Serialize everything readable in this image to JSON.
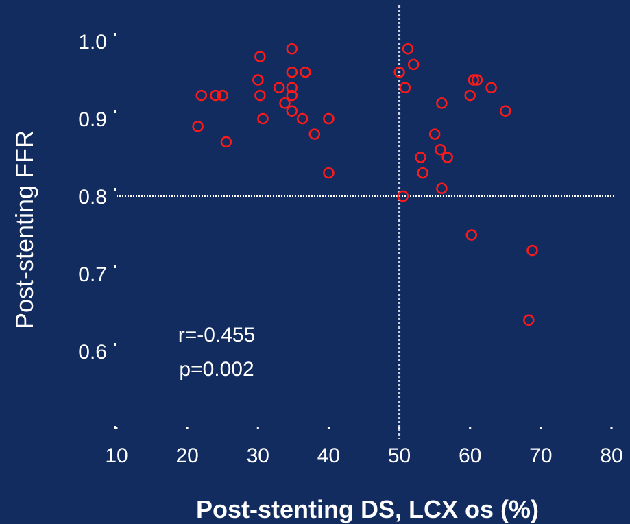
{
  "chart_data": {
    "type": "scatter",
    "xlabel": "Post-stenting DS, LCX os (%)",
    "ylabel": "Post-stenting FFR",
    "xlim": [
      10,
      80
    ],
    "ylim": [
      0.5,
      1.0
    ],
    "x_ticks": [
      10,
      20,
      30,
      40,
      50,
      60,
      70,
      80
    ],
    "x_tick_labels": [
      "10",
      "20",
      "30",
      "40",
      "50",
      "60",
      "70",
      "80"
    ],
    "y_ticks": [
      0.6,
      0.7,
      0.8,
      0.9,
      1.0
    ],
    "y_tick_labels": [
      "0.6",
      "0.7",
      "0.8",
      "0.9",
      "1.0"
    ],
    "grid": false,
    "reference_lines": {
      "x": 50,
      "y": 0.8
    },
    "annotations": [
      "r=-0.455",
      "p=0.002"
    ],
    "marker_color": "#ff1a1a",
    "marker": "open-circle",
    "series": [
      {
        "points": [
          [
            21.5,
            0.89
          ],
          [
            22,
            0.93
          ],
          [
            24,
            0.93
          ],
          [
            25,
            0.93
          ],
          [
            25.5,
            0.87
          ],
          [
            30,
            0.95
          ],
          [
            30.3,
            0.98
          ],
          [
            30.3,
            0.93
          ],
          [
            30.7,
            0.9
          ],
          [
            33,
            0.94
          ],
          [
            33.8,
            0.92
          ],
          [
            34.8,
            0.99
          ],
          [
            34.8,
            0.96
          ],
          [
            34.8,
            0.94
          ],
          [
            34.8,
            0.93
          ],
          [
            34.8,
            0.91
          ],
          [
            36.3,
            0.9
          ],
          [
            36.7,
            0.96
          ],
          [
            38,
            0.88
          ],
          [
            40,
            0.9
          ],
          [
            40,
            0.83
          ],
          [
            50,
            0.96
          ],
          [
            50.5,
            0.8
          ],
          [
            50.8,
            0.94
          ],
          [
            51.2,
            0.99
          ],
          [
            52,
            0.97
          ],
          [
            53,
            0.85
          ],
          [
            53.3,
            0.83
          ],
          [
            55,
            0.88
          ],
          [
            55.8,
            0.86
          ],
          [
            56,
            0.92
          ],
          [
            56,
            0.81
          ],
          [
            56.8,
            0.85
          ],
          [
            60,
            0.93
          ],
          [
            60.2,
            0.75
          ],
          [
            60.5,
            0.95
          ],
          [
            61,
            0.95
          ],
          [
            63,
            0.94
          ],
          [
            65,
            0.91
          ],
          [
            68.3,
            0.64
          ],
          [
            68.8,
            0.73
          ]
        ]
      }
    ]
  }
}
